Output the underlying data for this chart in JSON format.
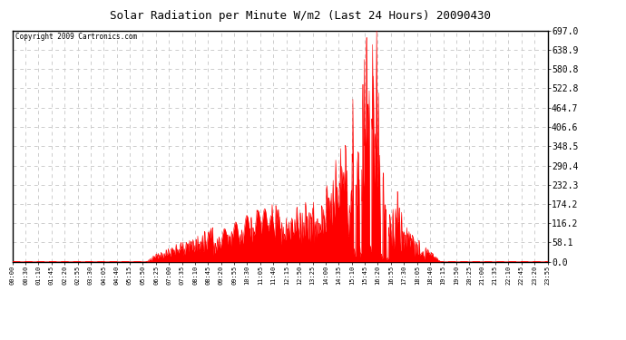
{
  "title": "Solar Radiation per Minute W/m2 (Last 24 Hours) 20090430",
  "copyright_text": "Copyright 2009 Cartronics.com",
  "fill_color": "#ff0000",
  "background_color": "#ffffff",
  "grid_color": "#c8c8c8",
  "y_min": 0.0,
  "y_max": 697.0,
  "y_ticks": [
    0.0,
    58.1,
    116.2,
    174.2,
    232.3,
    290.4,
    348.5,
    406.6,
    464.7,
    522.8,
    580.8,
    638.9,
    697.0
  ],
  "x_tick_labels": [
    "00:00",
    "00:30",
    "01:10",
    "01:45",
    "02:20",
    "02:55",
    "03:30",
    "04:05",
    "04:40",
    "05:15",
    "05:50",
    "06:25",
    "07:00",
    "07:35",
    "08:10",
    "08:45",
    "09:20",
    "09:55",
    "10:30",
    "11:05",
    "11:40",
    "12:15",
    "12:50",
    "13:25",
    "14:00",
    "14:35",
    "15:10",
    "15:45",
    "16:20",
    "16:55",
    "17:30",
    "18:05",
    "18:40",
    "19:15",
    "19:50",
    "20:25",
    "21:00",
    "21:35",
    "22:10",
    "22:45",
    "23:20",
    "23:55"
  ]
}
